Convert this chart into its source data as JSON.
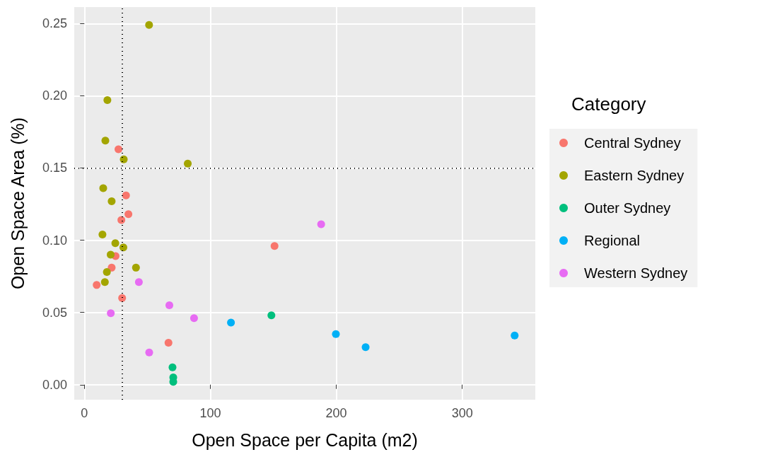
{
  "chart_data": {
    "type": "scatter",
    "xlabel": "Open Space per Capita (m2)",
    "ylabel": "Open Space Area (%)",
    "legend_title": "Category",
    "xlim": [
      -8,
      358
    ],
    "xticks": [
      0,
      100,
      200,
      300
    ],
    "ylim": [
      -0.0104,
      0.2614
    ],
    "yticks": [
      {
        "value": 0,
        "label": "0.00"
      },
      {
        "value": 0.05,
        "label": "0.05"
      },
      {
        "value": 0.1,
        "label": "0.10"
      },
      {
        "value": 0.15,
        "label": "0.15"
      },
      {
        "value": 0.2,
        "label": "0.20"
      },
      {
        "value": 0.25,
        "label": "0.25"
      }
    ],
    "grid": true,
    "legend": "right",
    "marker": "circle",
    "ref_lines": [
      {
        "axis": "x",
        "value": 30,
        "line_style": "dotted",
        "color": "#000000"
      },
      {
        "axis": "y",
        "value": 0.15,
        "line_style": "dotted",
        "color": "#000000"
      }
    ],
    "series": [
      {
        "name": "Central Sydney",
        "color": "#f8766d",
        "x": [
          27.1,
          33.1,
          35.0,
          29.4,
          24.8,
          21.7,
          9.8,
          30.0,
          66.8,
          151
        ],
        "values": [
          0.163,
          0.131,
          0.118,
          0.114,
          0.089,
          0.081,
          0.069,
          0.06,
          0.029,
          0.096
        ]
      },
      {
        "name": "Eastern Sydney",
        "color": "#a3a500",
        "x": [
          51.4,
          18.3,
          16.7,
          31.3,
          82.1,
          15.0,
          21.7,
          14.4,
          24.6,
          31.0,
          20.9,
          41.0,
          17.9,
          16.3
        ],
        "values": [
          0.249,
          0.197,
          0.169,
          0.156,
          0.153,
          0.136,
          0.127,
          0.104,
          0.098,
          0.095,
          0.09,
          0.081,
          0.078,
          0.071
        ]
      },
      {
        "name": "Outer Sydney",
        "color": "#00bf7d",
        "x": [
          148.5,
          70.0,
          70.6,
          70.6
        ],
        "values": [
          0.048,
          0.012,
          0.005,
          0.002
        ]
      },
      {
        "name": "Regional",
        "color": "#00b0f6",
        "x": [
          116.4,
          199.7,
          223.3,
          341.6
        ],
        "values": [
          0.043,
          0.035,
          0.026,
          0.034
        ]
      },
      {
        "name": "Western Sydney",
        "color": "#e76bf3",
        "x": [
          188,
          43.3,
          67.5,
          21,
          87.1,
          51.5
        ],
        "values": [
          0.111,
          0.071,
          0.055,
          0.0495,
          0.046,
          0.0223
        ]
      }
    ]
  }
}
